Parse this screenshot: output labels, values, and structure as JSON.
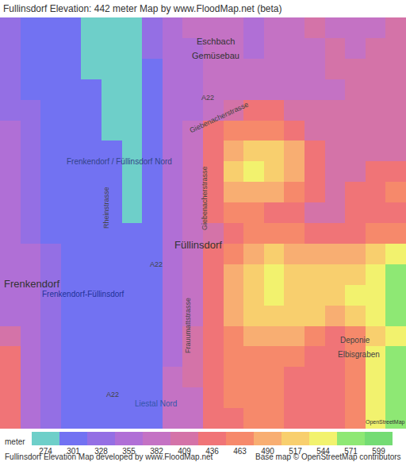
{
  "chart_data": {
    "type": "heatmap",
    "title": "Fullinsdorf Elevation: 442 meter Map by www.FloodMap.net (beta)",
    "cells": [
      [
        330,
        320,
        315,
        305,
        290,
        285,
        295,
        340,
        370,
        385,
        390,
        395,
        380,
        390,
        400,
        410,
        400,
        395,
        405,
        410
      ],
      [
        335,
        320,
        310,
        305,
        290,
        285,
        290,
        330,
        365,
        380,
        390,
        385,
        380,
        385,
        395,
        405,
        410,
        400,
        410,
        415
      ],
      [
        340,
        320,
        310,
        305,
        300,
        285,
        290,
        320,
        365,
        380,
        390,
        385,
        385,
        385,
        395,
        400,
        410,
        410,
        420,
        420
      ],
      [
        345,
        325,
        310,
        305,
        305,
        290,
        285,
        315,
        365,
        380,
        390,
        395,
        390,
        390,
        395,
        400,
        405,
        415,
        425,
        420
      ],
      [
        350,
        330,
        315,
        305,
        305,
        295,
        285,
        310,
        360,
        380,
        400,
        430,
        440,
        440,
        420,
        410,
        410,
        415,
        420,
        420
      ],
      [
        355,
        335,
        315,
        305,
        305,
        300,
        285,
        305,
        360,
        385,
        440,
        470,
        480,
        470,
        445,
        420,
        415,
        420,
        425,
        425
      ],
      [
        355,
        335,
        315,
        305,
        305,
        305,
        290,
        305,
        360,
        390,
        450,
        500,
        530,
        520,
        490,
        440,
        420,
        420,
        425,
        430
      ],
      [
        360,
        340,
        320,
        305,
        305,
        305,
        295,
        305,
        360,
        390,
        455,
        520,
        550,
        535,
        505,
        450,
        425,
        430,
        440,
        455
      ],
      [
        360,
        345,
        320,
        305,
        305,
        305,
        295,
        305,
        365,
        395,
        450,
        490,
        510,
        500,
        470,
        440,
        430,
        440,
        450,
        470
      ],
      [
        360,
        345,
        320,
        305,
        305,
        305,
        300,
        310,
        365,
        395,
        440,
        470,
        475,
        460,
        445,
        430,
        430,
        440,
        445,
        450
      ],
      [
        355,
        345,
        325,
        305,
        305,
        305,
        305,
        310,
        370,
        400,
        435,
        460,
        480,
        480,
        470,
        460,
        455,
        460,
        465,
        470
      ],
      [
        360,
        355,
        340,
        315,
        305,
        305,
        305,
        315,
        370,
        400,
        440,
        480,
        510,
        520,
        515,
        505,
        500,
        510,
        530,
        555
      ],
      [
        370,
        370,
        350,
        320,
        305,
        305,
        305,
        315,
        370,
        405,
        440,
        490,
        530,
        545,
        535,
        530,
        530,
        540,
        560,
        575
      ],
      [
        375,
        375,
        345,
        315,
        305,
        305,
        305,
        315,
        375,
        405,
        445,
        495,
        530,
        545,
        540,
        535,
        535,
        545,
        565,
        580
      ],
      [
        380,
        370,
        340,
        310,
        305,
        305,
        305,
        315,
        375,
        405,
        445,
        490,
        520,
        530,
        525,
        520,
        515,
        530,
        555,
        575
      ],
      [
        430,
        370,
        335,
        310,
        305,
        305,
        305,
        320,
        380,
        410,
        440,
        470,
        490,
        500,
        490,
        470,
        460,
        480,
        540,
        570
      ],
      [
        440,
        360,
        330,
        310,
        305,
        305,
        305,
        320,
        380,
        410,
        445,
        470,
        475,
        480,
        465,
        455,
        445,
        470,
        545,
        575
      ],
      [
        445,
        360,
        330,
        310,
        305,
        305,
        305,
        320,
        385,
        410,
        445,
        480,
        470,
        470,
        455,
        440,
        440,
        465,
        550,
        580
      ],
      [
        450,
        365,
        335,
        310,
        305,
        305,
        305,
        320,
        385,
        405,
        440,
        470,
        475,
        470,
        450,
        440,
        445,
        470,
        550,
        585
      ],
      [
        455,
        370,
        335,
        310,
        305,
        305,
        310,
        325,
        385,
        400,
        440,
        455,
        465,
        465,
        445,
        440,
        445,
        475,
        555,
        585
      ]
    ],
    "scale_label": "meter",
    "levels": [
      274,
      301,
      328,
      355,
      382,
      409,
      436,
      463,
      490,
      517,
      544,
      571,
      599
    ],
    "colors": [
      "#6ecfc9",
      "#7272f2",
      "#946fe4",
      "#b06fd6",
      "#c472c4",
      "#d473a8",
      "#f07477",
      "#f6896b",
      "#f8ae72",
      "#f8cf6e",
      "#f2f26e",
      "#8ee874",
      "#74dc74"
    ],
    "labels": [
      "Eschbach",
      "Gemüsebau",
      "Giebenacherstrasse",
      "Giebenacherstrasse",
      "Rheinstrasse",
      "Frenkendorf / Füllinsdorf Nord",
      "Füllinsdorf",
      "Frenkendorf",
      "Frenkendorf-Füllinsdorf",
      "Frauumattstrasse",
      "A22",
      "A22",
      "A22",
      "Deponie",
      "Elbisgraben",
      "Liestal Nord",
      "OpenStreetMap"
    ],
    "footer_left": "Fullinsdorf Elevation Map developed by www.FloodMap.net",
    "footer_right": "Base map © OpenStreetMap contributors"
  }
}
